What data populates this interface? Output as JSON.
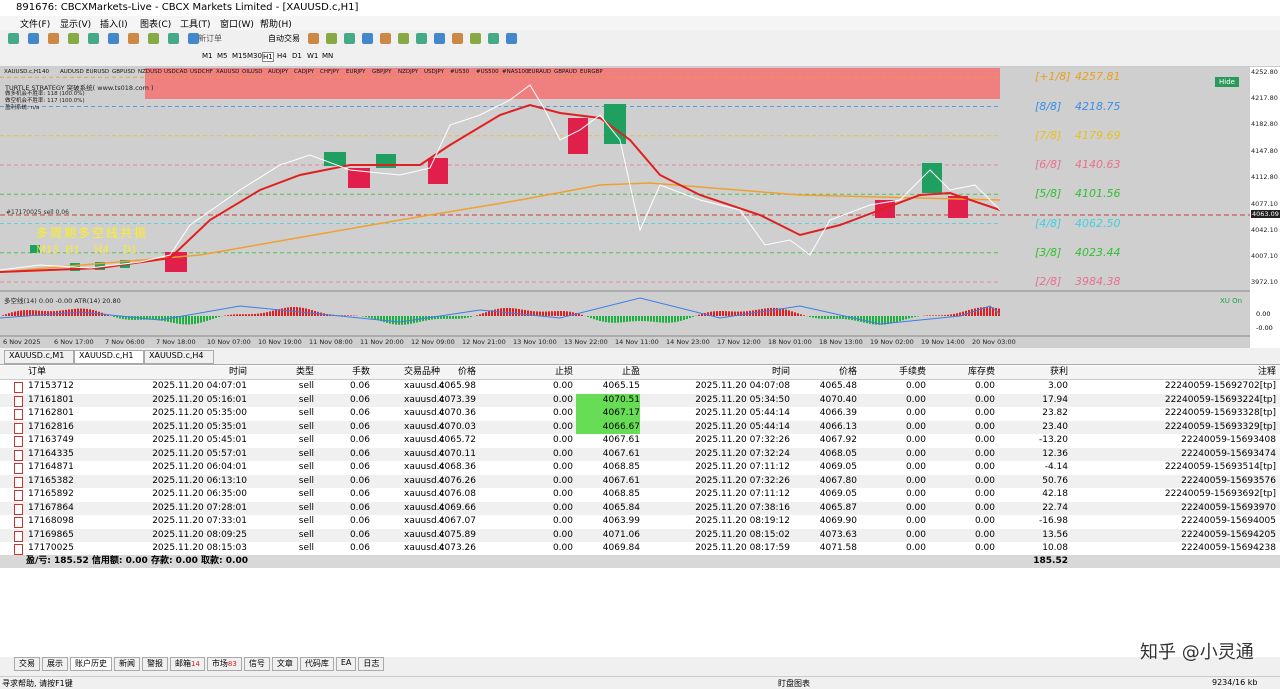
{
  "window": {
    "title": "891676: CBCXMarkets-Live - CBCX Markets Limited - [XAUUSD.c,H1]"
  },
  "menu": [
    "文件(F)",
    "显示(V)",
    "插入(I)",
    "图表(C)",
    "工具(T)",
    "窗口(W)",
    "帮助(H)"
  ],
  "toolbar": {
    "buttons": [
      "新订单",
      "自动交易"
    ],
    "timeframes": [
      "M1",
      "M5",
      "M15",
      "M30",
      "H1",
      "H4",
      "D1",
      "W1",
      "MN"
    ]
  },
  "chart": {
    "symbol_bar": [
      "XAUUSD.c,H1",
      "40",
      "AUDUSD",
      "EURUSD",
      "GBPUSD",
      "NZDUSD",
      "USDCAD",
      "USDCHF",
      "XAUUSD",
      "OILUSD",
      "AUDJPY",
      "CADJPY",
      "CHFJPY",
      "EURJPY",
      "GBPJPY",
      "NZDJPY",
      "USDJPY",
      "#US30",
      "#US500",
      "#NAS100",
      "EURAUD",
      "GBPAUD",
      "EURGBP"
    ],
    "system_lines": [
      "TURTLE STRATEGY 突破系统( www.ts018.com )",
      "做多机会不胜率: 118 (100.0%)",
      "做空机会不胜率: 117 (100.0%)",
      "盈利系统: n/a"
    ],
    "order_line": "#17170025 sell 0.06",
    "resonance_title": "多周期多空线共振",
    "resonance_periods": [
      "M15",
      "H1",
      "H4",
      "D1"
    ],
    "murrey_levels": [
      {
        "label": "[+1/8]",
        "price": "4257.81",
        "color": "#e8a020"
      },
      {
        "label": "[8/8]",
        "price": "4218.75",
        "color": "#3a8ee6"
      },
      {
        "label": "[7/8]",
        "price": "4179.69",
        "color": "#e6c020"
      },
      {
        "label": "[6/8]",
        "price": "4140.63",
        "color": "#e87090"
      },
      {
        "label": "[5/8]",
        "price": "4101.56",
        "color": "#30c030"
      },
      {
        "label": "[4/8]",
        "price": "4062.50",
        "color": "#40d0e0"
      },
      {
        "label": "[3/8]",
        "price": "4023.44",
        "color": "#30c030"
      },
      {
        "label": "[2/8]",
        "price": "3984.38",
        "color": "#e87090"
      }
    ],
    "price_axis": [
      "4252.80",
      "4217.80",
      "4182.80",
      "4147.80",
      "4112.80",
      "4077.10",
      "4063.09",
      "4042.10",
      "4007.10",
      "3972.10"
    ],
    "current_price": "4063.09",
    "hide_button": "Hide",
    "indicator_label": "多空线(14) 0.00 -0.00  ATR(14) 20.80",
    "indicator_tag": "XU On",
    "indicator_axis": [
      "0.00",
      "-0.00"
    ],
    "time_axis": [
      "6 Nov 2025",
      "6 Nov 17:00",
      "7 Nov 06:00",
      "7 Nov 18:00",
      "10 Nov 07:00",
      "10 Nov 19:00",
      "11 Nov 08:00",
      "11 Nov 20:00",
      "12 Nov 09:00",
      "12 Nov 21:00",
      "13 Nov 10:00",
      "13 Nov 22:00",
      "14 Nov 11:00",
      "14 Nov 23:00",
      "17 Nov 12:00",
      "18 Nov 01:00",
      "18 Nov 13:00",
      "19 Nov 02:00",
      "19 Nov 14:00",
      "20 Nov 03:00"
    ]
  },
  "chart_tabs": [
    "XAUUSD.c,M1",
    "XAUUSD.c,H1",
    "XAUUSD.c,H4"
  ],
  "table": {
    "headers": [
      "订单",
      "时间",
      "类型",
      "手数",
      "交易品种",
      "价格",
      "止损",
      "止盈",
      "时间",
      "价格",
      "手续费",
      "库存费",
      "获利",
      "注释"
    ],
    "rows": [
      [
        "17153712",
        "2025.11.20 04:07:01",
        "sell",
        "0.06",
        "xauusd.c",
        "4065.98",
        "0.00",
        "4065.15",
        "2025.11.20 04:07:08",
        "4065.48",
        "0.00",
        "0.00",
        "3.00",
        "22240059-15692702[tp]"
      ],
      [
        "17161801",
        "2025.11.20 05:16:01",
        "sell",
        "0.06",
        "xauusd.c",
        "4073.39",
        "0.00",
        "4070.51",
        "2025.11.20 05:34:50",
        "4070.40",
        "0.00",
        "0.00",
        "17.94",
        "22240059-15693224[tp]"
      ],
      [
        "17162801",
        "2025.11.20 05:35:00",
        "sell",
        "0.06",
        "xauusd.c",
        "4070.36",
        "0.00",
        "4067.17",
        "2025.11.20 05:44:14",
        "4066.39",
        "0.00",
        "0.00",
        "23.82",
        "22240059-15693328[tp]"
      ],
      [
        "17162816",
        "2025.11.20 05:35:01",
        "sell",
        "0.06",
        "xauusd.c",
        "4070.03",
        "0.00",
        "4066.67",
        "2025.11.20 05:44:14",
        "4066.13",
        "0.00",
        "0.00",
        "23.40",
        "22240059-15693329[tp]"
      ],
      [
        "17163749",
        "2025.11.20 05:45:01",
        "sell",
        "0.06",
        "xauusd.c",
        "4065.72",
        "0.00",
        "4067.61",
        "2025.11.20 07:32:26",
        "4067.92",
        "0.00",
        "0.00",
        "-13.20",
        "22240059-15693408"
      ],
      [
        "17164335",
        "2025.11.20 05:57:01",
        "sell",
        "0.06",
        "xauusd.c",
        "4070.11",
        "0.00",
        "4067.61",
        "2025.11.20 07:32:24",
        "4068.05",
        "0.00",
        "0.00",
        "12.36",
        "22240059-15693474"
      ],
      [
        "17164871",
        "2025.11.20 06:04:01",
        "sell",
        "0.06",
        "xauusd.c",
        "4068.36",
        "0.00",
        "4068.85",
        "2025.11.20 07:11:12",
        "4069.05",
        "0.00",
        "0.00",
        "-4.14",
        "22240059-15693514[tp]"
      ],
      [
        "17165382",
        "2025.11.20 06:13:10",
        "sell",
        "0.06",
        "xauusd.c",
        "4076.26",
        "0.00",
        "4067.61",
        "2025.11.20 07:32:26",
        "4067.80",
        "0.00",
        "0.00",
        "50.76",
        "22240059-15693576"
      ],
      [
        "17165892",
        "2025.11.20 06:35:00",
        "sell",
        "0.06",
        "xauusd.c",
        "4076.08",
        "0.00",
        "4068.85",
        "2025.11.20 07:11:12",
        "4069.05",
        "0.00",
        "0.00",
        "42.18",
        "22240059-15693692[tp]"
      ],
      [
        "17167864",
        "2025.11.20 07:28:01",
        "sell",
        "0.06",
        "xauusd.c",
        "4069.66",
        "0.00",
        "4065.84",
        "2025.11.20 07:38:16",
        "4065.87",
        "0.00",
        "0.00",
        "22.74",
        "22240059-15693970"
      ],
      [
        "17168098",
        "2025.11.20 07:33:01",
        "sell",
        "0.06",
        "xauusd.c",
        "4067.07",
        "0.00",
        "4063.99",
        "2025.11.20 08:19:12",
        "4069.90",
        "0.00",
        "0.00",
        "-16.98",
        "22240059-15694005"
      ],
      [
        "17169865",
        "2025.11.20 08:09:25",
        "sell",
        "0.06",
        "xauusd.c",
        "4075.89",
        "0.00",
        "4071.06",
        "2025.11.20 08:15:02",
        "4073.63",
        "0.00",
        "0.00",
        "13.56",
        "22240059-15694205"
      ],
      [
        "17170025",
        "2025.11.20 08:15:03",
        "sell",
        "0.06",
        "xauusd.c",
        "4073.26",
        "0.00",
        "4069.84",
        "2025.11.20 08:17:59",
        "4071.58",
        "0.00",
        "0.00",
        "10.08",
        "22240059-15694238"
      ]
    ],
    "summary": "盈/亏: 185.52  信用额: 0.00  存款: 0.00  取款: 0.00",
    "summary_total": "185.52"
  },
  "bottom_tabs": [
    {
      "label": "交易"
    },
    {
      "label": "展示"
    },
    {
      "label": "账户历史"
    },
    {
      "label": "新闻"
    },
    {
      "label": "警报"
    },
    {
      "label": "邮箱",
      "badge": "14"
    },
    {
      "label": "市场",
      "badge": "83"
    },
    {
      "label": "信号"
    },
    {
      "label": "文章"
    },
    {
      "label": "代码库"
    },
    {
      "label": "EA"
    },
    {
      "label": "日志"
    }
  ],
  "status": {
    "help": "寻求帮助, 请按F1键",
    "profile": "盯盘图表",
    "traffic": "9234/16 kb"
  },
  "watermark": "知乎 @小灵通"
}
